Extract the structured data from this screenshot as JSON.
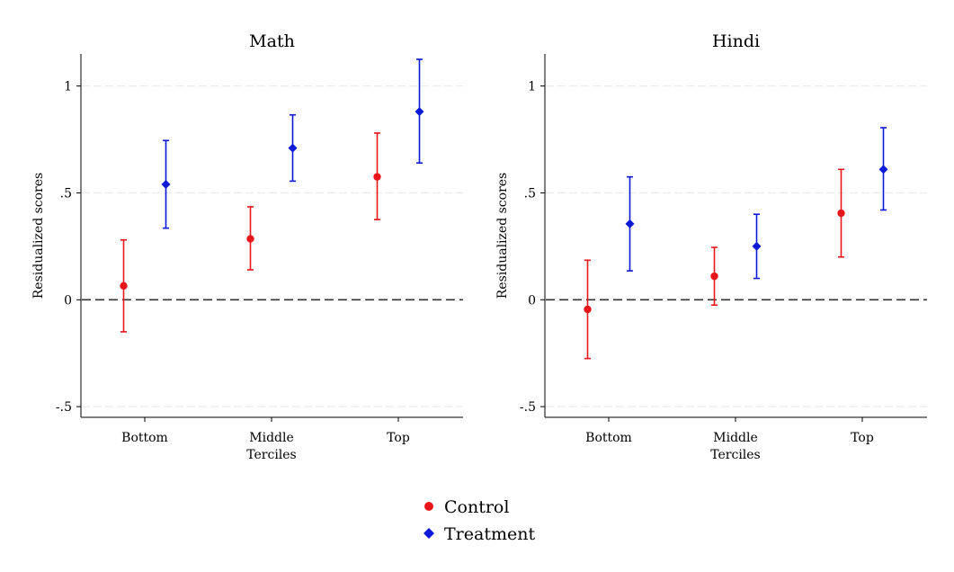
{
  "chart_data": [
    {
      "type": "scatter",
      "title": "Math",
      "xlabel": "Terciles",
      "ylabel": "Residualized scores",
      "categories": [
        "Bottom",
        "Middle",
        "Top"
      ],
      "ylim": [
        -0.55,
        1.15
      ],
      "yticks": [
        -0.5,
        0,
        0.5,
        1
      ],
      "ytick_labels": [
        "-.5",
        "0",
        ".5",
        "1"
      ],
      "reference_line": 0,
      "grid": true,
      "series": [
        {
          "name": "Control",
          "color": "#e8161b",
          "marker": "circle",
          "values": [
            0.065,
            0.285,
            0.575
          ],
          "lower": [
            -0.15,
            0.14,
            0.375
          ],
          "upper": [
            0.28,
            0.435,
            0.78
          ]
        },
        {
          "name": "Treatment",
          "color": "#0d1ad8",
          "marker": "diamond",
          "values": [
            0.54,
            0.71,
            0.88
          ],
          "lower": [
            0.335,
            0.555,
            0.64
          ],
          "upper": [
            0.745,
            0.865,
            1.125
          ]
        }
      ]
    },
    {
      "type": "scatter",
      "title": "Hindi",
      "xlabel": "Terciles",
      "ylabel": "Residualized scores",
      "categories": [
        "Bottom",
        "Middle",
        "Top"
      ],
      "ylim": [
        -0.55,
        1.15
      ],
      "yticks": [
        -0.5,
        0,
        0.5,
        1
      ],
      "ytick_labels": [
        "-.5",
        "0",
        ".5",
        "1"
      ],
      "reference_line": 0,
      "grid": true,
      "series": [
        {
          "name": "Control",
          "color": "#e8161b",
          "marker": "circle",
          "values": [
            -0.045,
            0.11,
            0.405
          ],
          "lower": [
            -0.275,
            -0.025,
            0.2
          ],
          "upper": [
            0.185,
            0.245,
            0.61
          ]
        },
        {
          "name": "Treatment",
          "color": "#0d1ad8",
          "marker": "diamond",
          "values": [
            0.355,
            0.25,
            0.61
          ],
          "lower": [
            0.135,
            0.1,
            0.42
          ],
          "upper": [
            0.575,
            0.4,
            0.805
          ]
        }
      ]
    }
  ],
  "legend": {
    "placement": "bottom-center",
    "items": [
      {
        "label": "Control",
        "color": "#e8161b",
        "marker": "circle"
      },
      {
        "label": "Treatment",
        "color": "#0d1ad8",
        "marker": "diamond"
      }
    ]
  }
}
